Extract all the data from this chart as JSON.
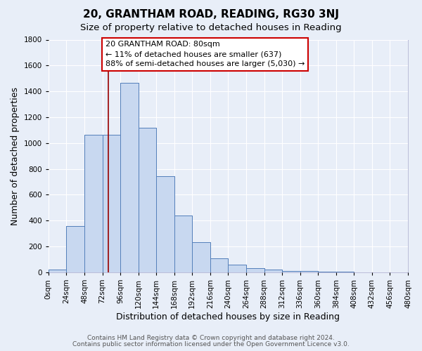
{
  "title": "20, GRANTHAM ROAD, READING, RG30 3NJ",
  "subtitle": "Size of property relative to detached houses in Reading",
  "xlabel": "Distribution of detached houses by size in Reading",
  "ylabel": "Number of detached properties",
  "bin_edges": [
    0,
    24,
    48,
    72,
    96,
    120,
    144,
    168,
    192,
    216,
    240,
    264,
    288,
    312,
    336,
    360,
    384,
    408,
    432,
    456,
    480
  ],
  "bar_heights": [
    20,
    355,
    1065,
    1065,
    1465,
    1120,
    745,
    440,
    230,
    110,
    57,
    30,
    18,
    10,
    8,
    5,
    5,
    0,
    0,
    0
  ],
  "bar_color": "#c8d8f0",
  "bar_edge_color": "#5580bb",
  "property_size": 80,
  "red_line_color": "#990000",
  "annotation_text": "20 GRANTHAM ROAD: 80sqm\n← 11% of detached houses are smaller (637)\n88% of semi-detached houses are larger (5,030) →",
  "annotation_box_color": "#ffffff",
  "annotation_box_edge_color": "#cc0000",
  "ylim": [
    0,
    1800
  ],
  "yticks": [
    0,
    200,
    400,
    600,
    800,
    1000,
    1200,
    1400,
    1600,
    1800
  ],
  "tick_labels": [
    "0sqm",
    "24sqm",
    "48sqm",
    "72sqm",
    "96sqm",
    "120sqm",
    "144sqm",
    "168sqm",
    "192sqm",
    "216sqm",
    "240sqm",
    "264sqm",
    "288sqm",
    "312sqm",
    "336sqm",
    "360sqm",
    "384sqm",
    "408sqm",
    "432sqm",
    "456sqm",
    "480sqm"
  ],
  "footer_line1": "Contains HM Land Registry data © Crown copyright and database right 2024.",
  "footer_line2": "Contains public sector information licensed under the Open Government Licence v3.0.",
  "background_color": "#e8eef8",
  "plot_bg_color": "#e8eef8",
  "grid_color": "#ffffff",
  "title_fontsize": 11,
  "subtitle_fontsize": 9.5,
  "axis_label_fontsize": 9,
  "tick_fontsize": 7.5,
  "footer_fontsize": 6.5,
  "annotation_fontsize": 8
}
